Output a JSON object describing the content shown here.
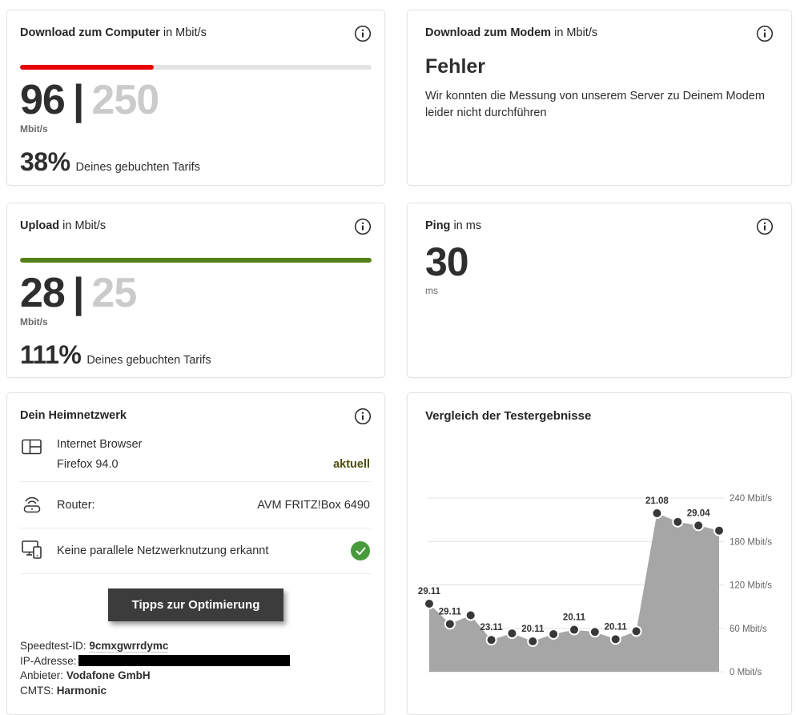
{
  "cards": {
    "download_computer": {
      "title_bold": "Download zum Computer",
      "title_rest": " in Mbit/s",
      "value": "96",
      "separator": "|",
      "max": "250",
      "unit": "Mbit/s",
      "percent": "38%",
      "percent_label": "Deines gebuchten Tarifs",
      "progress_percent": 38,
      "bar_color": "#e60000"
    },
    "download_modem": {
      "title_bold": "Download zum Modem",
      "title_rest": " in Mbit/s",
      "error_title": "Fehler",
      "error_text": "Wir konnten die Messung von unserem Server zu Deinem Modem leider nicht durchführen"
    },
    "upload": {
      "title_bold": "Upload",
      "title_rest": " in Mbit/s",
      "value": "28",
      "separator": "|",
      "max": "25",
      "unit": "Mbit/s",
      "percent": "111%",
      "percent_label": "Deines gebuchten Tarifs",
      "progress_percent": 100,
      "bar_color": "#538019"
    },
    "ping": {
      "title_bold": "Ping",
      "title_rest": " in ms",
      "value": "30",
      "unit": "ms"
    },
    "heimnetzwerk": {
      "title": "Dein Heimnetzwerk",
      "browser_label": "Internet Browser",
      "browser_value": "Firefox 94.0",
      "browser_status": "aktuell",
      "router_label": "Router:",
      "router_value": "AVM FRITZ!Box 6490",
      "parallel_label": "Keine parallele Netzwerknutzung erkannt",
      "button_label": "Tipps zur Optimierung",
      "details": [
        {
          "label": "Speedtest-ID:",
          "value": "9cmxgwrrdymc"
        },
        {
          "label": "IP-Adresse:",
          "value": ""
        },
        {
          "label": "Anbieter:",
          "value": "Vodafone GmbH"
        },
        {
          "label": "CMTS:",
          "value": "Harmonic"
        }
      ]
    },
    "vergleich": {
      "title": "Vergleich der Testergebnisse"
    }
  },
  "status_colors": {
    "ok_green": "#479b3c",
    "aktuell_olive": "#4a4d0e",
    "vodafone_red": "#e60000",
    "upload_green": "#538019"
  },
  "chart_data": {
    "type": "area",
    "title": "Vergleich der Testergebnisse",
    "x_labels": [
      "29.11",
      "29.11",
      "",
      "23.11",
      "",
      "20.11",
      "",
      "20.11",
      "",
      "20.11",
      "",
      "21.08",
      "",
      "29.04",
      ""
    ],
    "values": [
      94,
      66,
      78,
      44,
      53,
      42,
      52,
      58,
      55,
      45,
      56,
      219,
      207,
      202,
      195
    ],
    "xlabel": "",
    "ylabel": "Mbit/s",
    "ylim": [
      0,
      240
    ],
    "yticks": [
      0,
      60,
      120,
      180,
      240
    ],
    "ytick_suffix": " Mbit/s",
    "grid": true,
    "legend_position": "none",
    "area_color": "#a6a6a6",
    "point_color": "#383838",
    "grid_color": "#e1e1e1"
  }
}
